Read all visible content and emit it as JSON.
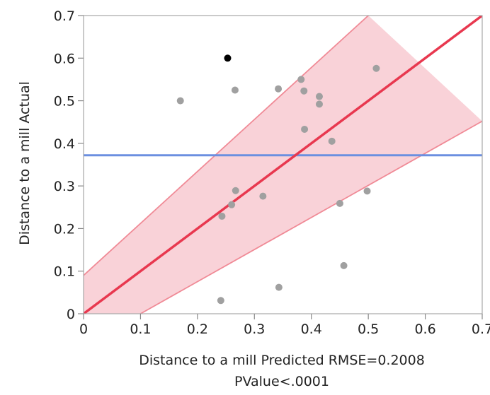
{
  "chart_data": {
    "type": "scatter",
    "title": "",
    "xlabel_line1": "Distance to a mill Predicted RMSE=0.2008",
    "xlabel_line2": "PValue<.0001",
    "ylabel": "Distance to a mill Actual",
    "xlim": [
      0,
      0.7
    ],
    "ylim": [
      0,
      0.7
    ],
    "xticks": [
      "0",
      "0.1",
      "0.2",
      "0.3",
      "0.4",
      "0.5",
      "0.6",
      "0.7"
    ],
    "yticks": [
      "0",
      "0.1",
      "0.2",
      "0.3",
      "0.4",
      "0.5",
      "0.6",
      "0.7"
    ],
    "grid": false,
    "mean_line": {
      "y": 0.372,
      "color": "#6b8fe0"
    },
    "fit_line": {
      "x": [
        0,
        0.7
      ],
      "y": [
        0,
        0.7
      ],
      "color": "#e8384f"
    },
    "confidence_band": {
      "upper": [
        [
          0,
          0.09
        ],
        [
          0.5,
          0.7
        ]
      ],
      "lower": [
        [
          0.1,
          0
        ],
        [
          0.7,
          0.452
        ]
      ],
      "fill": "#f9d2d8",
      "edge": "#f08a96"
    },
    "points": [
      {
        "x": 0.253,
        "y": 0.6,
        "color": "#000000"
      },
      {
        "x": 0.17,
        "y": 0.5,
        "color": "#a0a0a0"
      },
      {
        "x": 0.266,
        "y": 0.525,
        "color": "#a0a0a0"
      },
      {
        "x": 0.342,
        "y": 0.528,
        "color": "#a0a0a0"
      },
      {
        "x": 0.382,
        "y": 0.55,
        "color": "#a0a0a0"
      },
      {
        "x": 0.387,
        "y": 0.523,
        "color": "#a0a0a0"
      },
      {
        "x": 0.414,
        "y": 0.51,
        "color": "#a0a0a0"
      },
      {
        "x": 0.414,
        "y": 0.492,
        "color": "#a0a0a0"
      },
      {
        "x": 0.514,
        "y": 0.576,
        "color": "#a0a0a0"
      },
      {
        "x": 0.388,
        "y": 0.433,
        "color": "#a0a0a0"
      },
      {
        "x": 0.436,
        "y": 0.405,
        "color": "#a0a0a0"
      },
      {
        "x": 0.267,
        "y": 0.289,
        "color": "#a0a0a0"
      },
      {
        "x": 0.315,
        "y": 0.276,
        "color": "#a0a0a0"
      },
      {
        "x": 0.26,
        "y": 0.256,
        "color": "#a0a0a0"
      },
      {
        "x": 0.243,
        "y": 0.229,
        "color": "#a0a0a0"
      },
      {
        "x": 0.498,
        "y": 0.288,
        "color": "#a0a0a0"
      },
      {
        "x": 0.45,
        "y": 0.259,
        "color": "#a0a0a0"
      },
      {
        "x": 0.457,
        "y": 0.113,
        "color": "#a0a0a0"
      },
      {
        "x": 0.343,
        "y": 0.062,
        "color": "#a0a0a0"
      },
      {
        "x": 0.241,
        "y": 0.031,
        "color": "#a0a0a0"
      }
    ]
  }
}
